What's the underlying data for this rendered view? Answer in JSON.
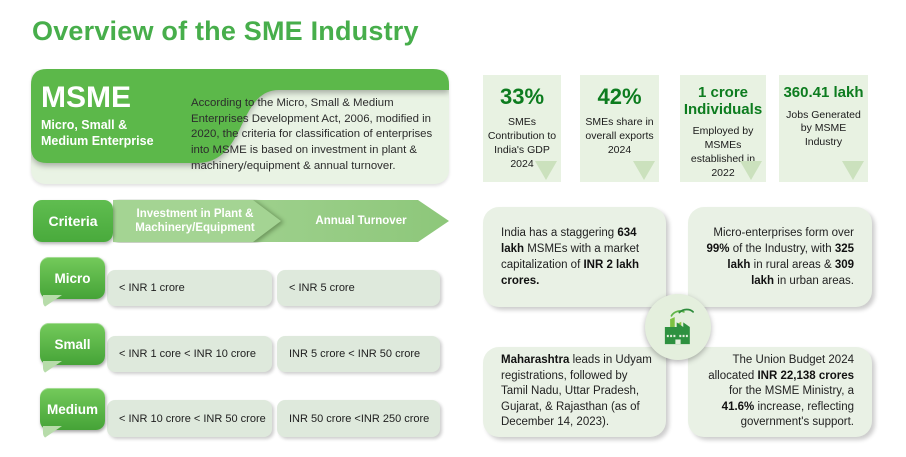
{
  "title": "Overview of the SME Industry",
  "banner": {
    "acronym": "MSME",
    "subtitle_lines": [
      "Micro, Small &",
      "Medium Enterprise"
    ],
    "description": "According to the Micro, Small & Medium Enterprises Development Act, 2006, modified in 2020, the criteria for classification of enterprises into MSME is based on investment in plant & machinery/equipment & annual turnover."
  },
  "criteria": {
    "header": "Criteria",
    "col1": "Investment in Plant & Machinery/Equipment",
    "col2": "Annual Turnover",
    "rows": [
      {
        "label": "Micro",
        "investment": "< INR 1 crore",
        "turnover": "< INR 5 crore"
      },
      {
        "label": "Small",
        "investment": "< INR 1 core < INR 10 crore",
        "turnover": "INR 5 crore < INR 50 crore"
      },
      {
        "label": "Medium",
        "investment": "< INR 10 crore < INR 50 crore",
        "turnover": "INR 50 crore <INR 250 crore"
      }
    ]
  },
  "stats": [
    {
      "value": "33%",
      "label": "SMEs Contribution to India's GDP 2024"
    },
    {
      "value": "42%",
      "label": "SMEs share in overall exports 2024"
    },
    {
      "value": "1 crore Individuals",
      "label": "Employed by MSMEs established in 2022"
    },
    {
      "value": "360.41 lakh",
      "label": "Jobs Generated by MSME Industry"
    }
  ],
  "facts": [
    {
      "segments": [
        {
          "text": "India has a staggering ",
          "bold": false
        },
        {
          "text": "634 lakh",
          "bold": true
        },
        {
          "text": " MSMEs with a market capitalization of ",
          "bold": false
        },
        {
          "text": "INR 2 lakh crores.",
          "bold": true
        }
      ]
    },
    {
      "segments": [
        {
          "text": "Micro-enterprises form over ",
          "bold": false
        },
        {
          "text": "99%",
          "bold": true
        },
        {
          "text": " of the Industry, with ",
          "bold": false
        },
        {
          "text": "325 lakh",
          "bold": true
        },
        {
          "text": " in rural areas & ",
          "bold": false
        },
        {
          "text": "309 lakh",
          "bold": true
        },
        {
          "text": " in urban areas.",
          "bold": false
        }
      ]
    },
    {
      "segments": [
        {
          "text": "Maharashtra",
          "bold": true
        },
        {
          "text": " leads in Udyam registrations, followed by Tamil Nadu, Uttar Pradesh, Gujarat, & Rajasthan (as of December 14, 2023).",
          "bold": false
        }
      ]
    },
    {
      "segments": [
        {
          "text": "The Union Budget 2024 allocated ",
          "bold": false
        },
        {
          "text": "INR 22,138 crores",
          "bold": true
        },
        {
          "text": " for the MSME Ministry, a ",
          "bold": false
        },
        {
          "text": "41.6%",
          "bold": true
        },
        {
          "text": " increase, reflecting government's support.",
          "bold": false
        }
      ]
    }
  ],
  "icons": {
    "center_icon": "factory-icon"
  },
  "colors": {
    "title_green": "#47ae4b",
    "banner_green": "#5cb84a",
    "light_panel": "#e9f3e4",
    "stat_number_green": "#0d7c1f",
    "stat_card_bg": "#e8f2e2",
    "value_box_bg": "#dee9dc"
  }
}
